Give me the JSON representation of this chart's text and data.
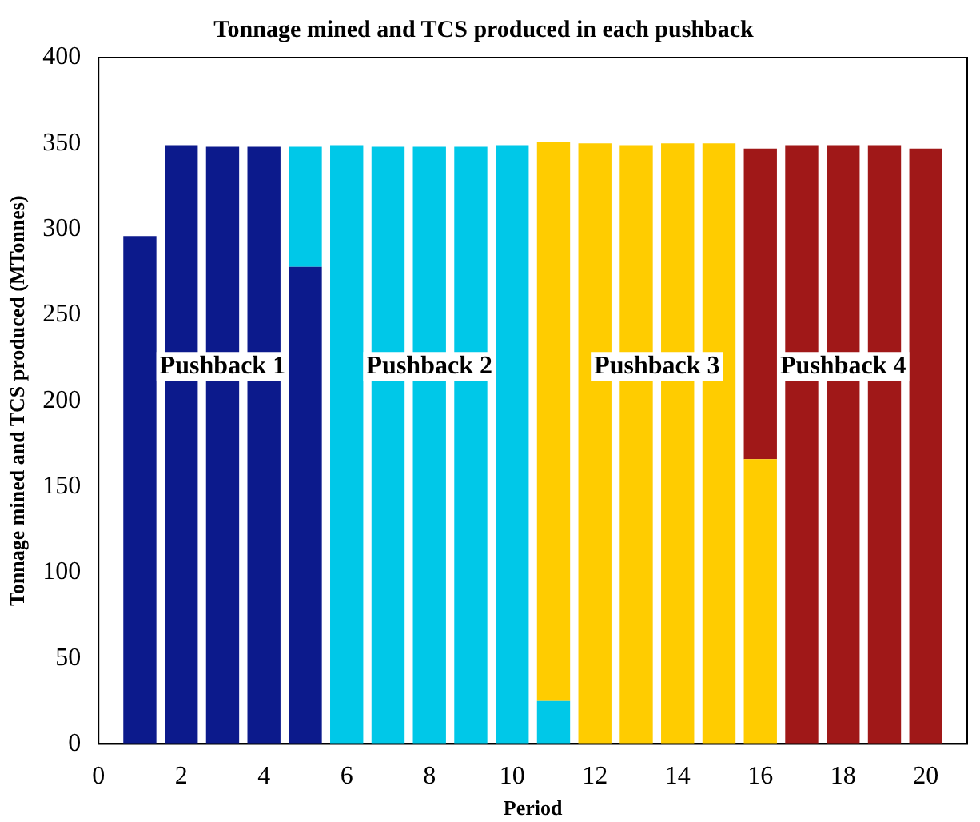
{
  "chart_data": {
    "type": "bar",
    "stacked": true,
    "title": "Tonnage mined and TCS produced in each pushback",
    "xlabel": "Period",
    "ylabel": "Tonnage mined and TCS produced (MTonnes)",
    "x": [
      1,
      2,
      3,
      4,
      5,
      6,
      7,
      8,
      9,
      10,
      11,
      12,
      13,
      14,
      15,
      16,
      17,
      18,
      19,
      20
    ],
    "series": [
      {
        "name": "Pushback 1",
        "color": "#0c1a8c",
        "values": [
          296,
          349,
          348,
          348,
          278,
          null,
          null,
          null,
          null,
          null,
          null,
          null,
          null,
          null,
          null,
          null,
          null,
          null,
          null,
          null
        ]
      },
      {
        "name": "Pushback 2",
        "color": "#00c8e8",
        "values": [
          null,
          null,
          null,
          null,
          70,
          349,
          348,
          348,
          348,
          349,
          25,
          null,
          null,
          null,
          null,
          null,
          null,
          null,
          null,
          null
        ]
      },
      {
        "name": "Pushback 3",
        "color": "#ffcc00",
        "values": [
          null,
          null,
          null,
          null,
          null,
          null,
          null,
          null,
          null,
          null,
          326,
          350,
          349,
          350,
          350,
          166,
          null,
          null,
          null,
          null
        ]
      },
      {
        "name": "Pushback 4",
        "color": "#a01818",
        "values": [
          null,
          null,
          null,
          null,
          null,
          null,
          null,
          null,
          null,
          null,
          null,
          null,
          null,
          null,
          null,
          181,
          349,
          349,
          349,
          347
        ]
      }
    ],
    "xlim": [
      0,
      21
    ],
    "xticks": [
      0,
      2,
      4,
      6,
      8,
      10,
      12,
      14,
      16,
      18,
      20
    ],
    "ylim": [
      0,
      400
    ],
    "yticks": [
      0,
      50,
      100,
      150,
      200,
      250,
      300,
      350,
      400
    ],
    "grid": false,
    "legend": false
  }
}
